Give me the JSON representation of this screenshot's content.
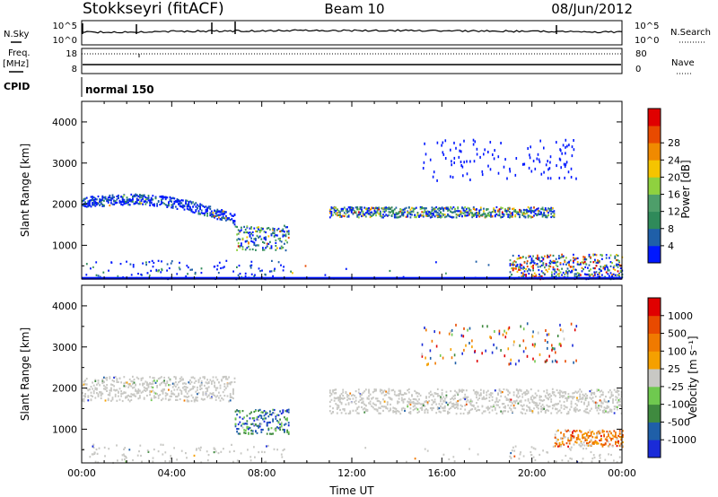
{
  "header": {
    "title": "Stokkseyri (fitACF)",
    "beam": "Beam 10",
    "date": "08/Jun/2012"
  },
  "strip": {
    "nsky_label": "N.Sky",
    "nsky_ticks": [
      "10^5",
      "10^0"
    ],
    "nsearch_label": "N.Search",
    "nsearch_ticks": [
      "10^5",
      "10^0"
    ],
    "freq_label": "Freq.",
    "freq_unit": "[MHz]",
    "freq_ticks": [
      "18",
      "8"
    ],
    "nave_label": "Nave",
    "nave_ticks": [
      "80",
      "0"
    ],
    "cpid_label": "CPID",
    "cpid_value": "normal 150"
  },
  "colors": {
    "power": [
      "#0018ff",
      "#1f5fa8",
      "#2f8a5a",
      "#4e9e6a",
      "#8fd13f",
      "#f5c400",
      "#f08a00",
      "#e84a00",
      "#e00000"
    ],
    "velocity": [
      "#1a2bd8",
      "#1f5fa8",
      "#3f8a3f",
      "#6fc94f",
      "#c8c8c4",
      "#f5a000",
      "#f07a00",
      "#e84a00",
      "#e00000"
    ],
    "ground_scatter": "#c8c8c4"
  },
  "chart_data": [
    {
      "type": "heatmap",
      "title": "Power",
      "ylabel": "Slant Range [km]",
      "xlabel": "",
      "x_ticks": [
        "00:00",
        "04:00",
        "08:00",
        "12:00",
        "16:00",
        "20:00",
        "00:00"
      ],
      "xlim_hours": [
        0,
        24
      ],
      "ylim": [
        180,
        4500
      ],
      "y_ticks": [
        1000,
        2000,
        3000,
        4000
      ],
      "colorbar": {
        "label": "Power [dB]",
        "ticks": [
          "4",
          "8",
          "12",
          "16",
          "20",
          "24",
          "28"
        ]
      },
      "scatter_bands": [
        {
          "t_start": 0.0,
          "t_end": 6.8,
          "range_start_km": 1750,
          "range_end_km": 2300,
          "dominant": "low power",
          "note": "descending range arc"
        },
        {
          "t_start": 6.8,
          "t_end": 9.2,
          "range_start_km": 900,
          "range_end_km": 1500,
          "dominant": "mid power",
          "note": "patch with highs near 08:00"
        },
        {
          "t_start": 11.0,
          "t_end": 21.0,
          "range_start_km": 1700,
          "range_end_km": 1950,
          "dominant": "mid power"
        },
        {
          "t_start": 19.0,
          "t_end": 24.0,
          "range_start_km": 200,
          "range_end_km": 800,
          "dominant": "high power"
        }
      ]
    },
    {
      "type": "heatmap",
      "title": "Velocity",
      "ylabel": "Slant Range [km]",
      "xlabel": "Time UT",
      "x_ticks": [
        "00:00",
        "04:00",
        "08:00",
        "12:00",
        "16:00",
        "20:00",
        "00:00"
      ],
      "xlim_hours": [
        0,
        24
      ],
      "ylim": [
        180,
        4500
      ],
      "y_ticks": [
        1000,
        2000,
        3000,
        4000
      ],
      "colorbar": {
        "label": "Velocity [m s⁻¹]",
        "ticks": [
          "1000",
          "500",
          "100",
          "25",
          "-25",
          "-100",
          "-500",
          "-1000"
        ]
      },
      "scatter_bands": [
        {
          "t_start": 0.0,
          "t_end": 6.8,
          "range_start_km": 1700,
          "range_end_km": 2300,
          "dominant": "ground scatter"
        },
        {
          "t_start": 6.8,
          "t_end": 9.2,
          "range_start_km": 900,
          "range_end_km": 1500,
          "dominant": "positive velocity"
        },
        {
          "t_start": 11.0,
          "t_end": 24.0,
          "range_start_km": 1400,
          "range_end_km": 2000,
          "dominant": "ground scatter"
        },
        {
          "t_start": 21.0,
          "t_end": 24.0,
          "range_start_km": 600,
          "range_end_km": 1000,
          "dominant": "negative velocity"
        }
      ]
    }
  ]
}
